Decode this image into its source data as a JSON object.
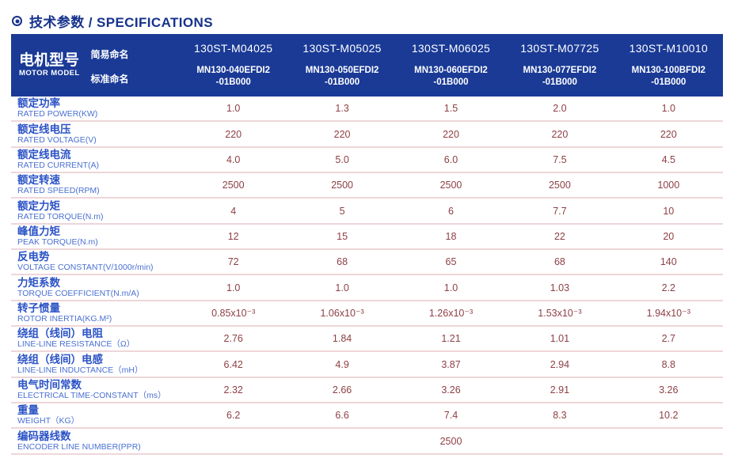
{
  "title": {
    "icon": "circle-dot-icon",
    "text": "技术参数 / SPECIFICATIONS"
  },
  "colors": {
    "title_blue": "#16328c",
    "header_bg": "#1a3a96",
    "header_text": "#ffffff",
    "label_cn_blue": "#2b53c6",
    "label_en_blue": "#4a70d2",
    "value_maroon": "#8e4045",
    "separator_dark": "#8a4a50",
    "separator_light": "#eed6d9"
  },
  "table": {
    "header": {
      "model_label_cn": "电机型号",
      "model_label_en": "MOTOR MODEL",
      "simple_name_label": "简易命名",
      "standard_name_label": "标准命名",
      "columns": [
        {
          "simple": "130ST-M04025",
          "standard_line1": "MN130-040EFDI2",
          "standard_line2": "-01B000"
        },
        {
          "simple": "130ST-M05025",
          "standard_line1": "MN130-050EFDI2",
          "standard_line2": "-01B000"
        },
        {
          "simple": "130ST-M06025",
          "standard_line1": "MN130-060EFDI2",
          "standard_line2": "-01B000"
        },
        {
          "simple": "130ST-M07725",
          "standard_line1": "MN130-077EFDI2",
          "standard_line2": "-01B000"
        },
        {
          "simple": "130ST-M10010",
          "standard_line1": "MN130-100BFDI2",
          "standard_line2": "-01B000"
        }
      ]
    },
    "rows": [
      {
        "cn": "额定功率",
        "en": "RATED POWER(KW)",
        "values": [
          "1.0",
          "1.3",
          "1.5",
          "2.0",
          "1.0"
        ]
      },
      {
        "cn": "额定线电压",
        "en": "RATED VOLTAGE(V)",
        "values": [
          "220",
          "220",
          "220",
          "220",
          "220"
        ]
      },
      {
        "cn": "额定线电流",
        "en": "RATED CURRENT(A)",
        "values": [
          "4.0",
          "5.0",
          "6.0",
          "7.5",
          "4.5"
        ]
      },
      {
        "cn": "额定转速",
        "en": "RATED SPEED(RPM)",
        "values": [
          "2500",
          "2500",
          "2500",
          "2500",
          "1000"
        ]
      },
      {
        "cn": "额定力矩",
        "en": "RATED TORQUE(N.m)",
        "values": [
          "4",
          "5",
          "6",
          "7.7",
          "10"
        ]
      },
      {
        "cn": "峰值力矩",
        "en": "PEAK TORQUE(N.m)",
        "values": [
          "12",
          "15",
          "18",
          "22",
          "20"
        ]
      },
      {
        "cn": "反电势",
        "en": "VOLTAGE CONSTANT(V/1000r/min)",
        "values": [
          "72",
          "68",
          "65",
          "68",
          "140"
        ]
      },
      {
        "cn": "力矩系数",
        "en": "TORQUE COEFFICIENT(N.m/A)",
        "values": [
          "1.0",
          "1.0",
          "1.0",
          "1.03",
          "2.2"
        ]
      },
      {
        "cn": "转子惯量",
        "en": "ROTOR INERTIA(KG.M²)",
        "values": [
          "0.85x10⁻³",
          "1.06x10⁻³",
          "1.26x10⁻³",
          "1.53x10⁻³",
          "1.94x10⁻³"
        ]
      },
      {
        "cn": "绕组（线间）电阻",
        "en": "LINE-LINE RESISTANCE（Ω）",
        "values": [
          "2.76",
          "1.84",
          "1.21",
          "1.01",
          "2.7"
        ]
      },
      {
        "cn": "绕组（线间）电感",
        "en": "LINE-LINE INDUCTANCE（mH）",
        "values": [
          "6.42",
          "4.9",
          "3.87",
          "2.94",
          "8.8"
        ]
      },
      {
        "cn": "电气时间常数",
        "en": "ELECTRICAL TIME-CONSTANT（ms）",
        "values": [
          "2.32",
          "2.66",
          "3.26",
          "2.91",
          "3.26"
        ]
      },
      {
        "cn": "重量",
        "en": "WEIGHT（KG）",
        "values": [
          "6.2",
          "6.6",
          "7.4",
          "8.3",
          "10.2"
        ]
      },
      {
        "cn": "编码器线数",
        "en": "ENCODER LINE NUMBER(PPR)",
        "values": [
          "2500"
        ],
        "span_all": true
      }
    ]
  }
}
